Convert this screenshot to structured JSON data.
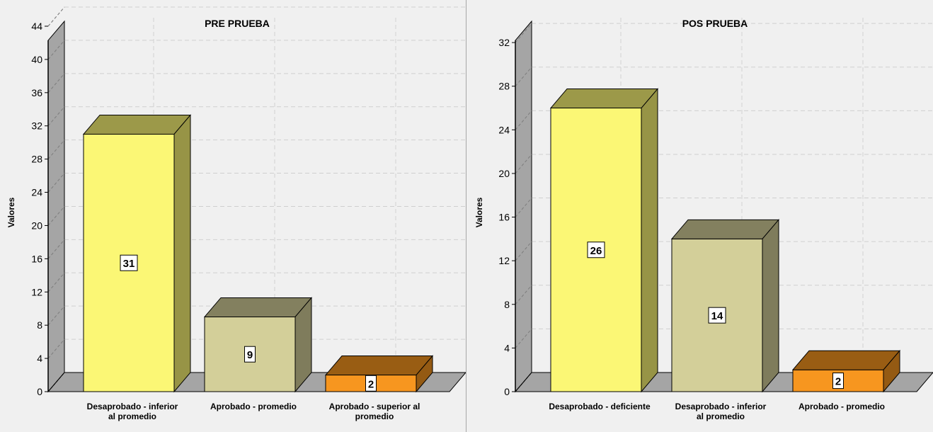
{
  "chart_data": [
    {
      "type": "bar",
      "title": "PRE PRUEBA",
      "ylabel": "Valores",
      "xlabel": "",
      "ylim": [
        0,
        44
      ],
      "yticks": [
        0,
        4,
        8,
        12,
        16,
        20,
        24,
        28,
        32,
        36,
        40,
        44
      ],
      "grid": true,
      "categories": [
        [
          "Desaprobado -  inferior",
          "al promedio"
        ],
        [
          "Aprobado - promedio"
        ],
        [
          "Aprobado -  superior al",
          "promedio"
        ]
      ],
      "values": [
        31,
        9,
        2
      ],
      "data_labels": [
        "31",
        "9",
        "2"
      ],
      "colors": [
        "#fbf775",
        "#d3cf99",
        "#f7961f"
      ]
    },
    {
      "type": "bar",
      "title": "POS PRUEBA",
      "ylabel": "Valores",
      "xlabel": "",
      "ylim": [
        0,
        33.5
      ],
      "yticks": [
        0,
        4,
        8,
        12,
        16,
        20,
        24,
        28,
        32
      ],
      "grid": true,
      "categories": [
        [
          "Desaprobado - deficiente"
        ],
        [
          "Desaprobado -  inferior",
          "al promedio"
        ],
        [
          "Aprobado - promedio"
        ]
      ],
      "values": [
        26,
        14,
        2
      ],
      "data_labels": [
        "26",
        "14",
        "2"
      ],
      "colors": [
        "#fbf775",
        "#d3cf99",
        "#f7961f"
      ]
    }
  ]
}
